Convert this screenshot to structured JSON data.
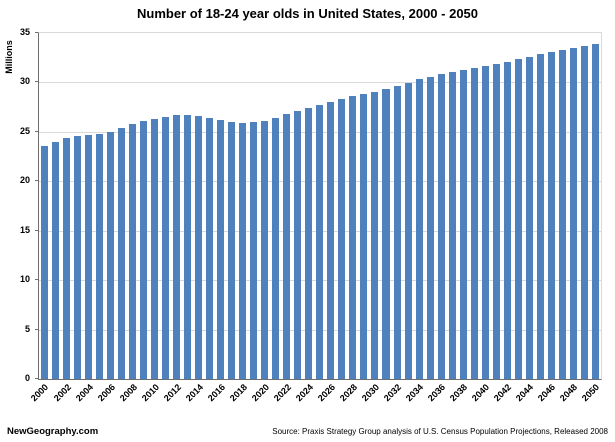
{
  "chart_data": {
    "type": "bar",
    "title": "Number of 18-24 year olds in United States, 2000 - 2050",
    "xlabel": "",
    "ylabel": "Millions",
    "ylim": [
      0,
      35
    ],
    "yticks": [
      0,
      5,
      10,
      15,
      20,
      25,
      30,
      35
    ],
    "x_tick_interval": 2,
    "grid": true,
    "legend": "none",
    "bar_color": "#4f81bd",
    "categories": [
      2000,
      2001,
      2002,
      2003,
      2004,
      2005,
      2006,
      2007,
      2008,
      2009,
      2010,
      2011,
      2012,
      2013,
      2014,
      2015,
      2016,
      2017,
      2018,
      2019,
      2020,
      2021,
      2022,
      2023,
      2024,
      2025,
      2026,
      2027,
      2028,
      2029,
      2030,
      2031,
      2032,
      2033,
      2034,
      2035,
      2036,
      2037,
      2038,
      2039,
      2040,
      2041,
      2042,
      2043,
      2044,
      2045,
      2046,
      2047,
      2048,
      2049,
      2050
    ],
    "values": [
      23.6,
      24.0,
      24.4,
      24.6,
      24.7,
      24.8,
      25.0,
      25.4,
      25.8,
      26.1,
      26.3,
      26.5,
      26.7,
      26.7,
      26.6,
      26.4,
      26.2,
      26.0,
      25.9,
      26.0,
      26.1,
      26.4,
      26.8,
      27.1,
      27.4,
      27.7,
      28.0,
      28.3,
      28.6,
      28.8,
      29.0,
      29.3,
      29.6,
      29.9,
      30.3,
      30.6,
      30.9,
      31.1,
      31.3,
      31.5,
      31.7,
      31.9,
      32.1,
      32.4,
      32.6,
      32.9,
      33.1,
      33.3,
      33.5,
      33.7,
      33.9
    ]
  },
  "footer": {
    "brand": "NewGeography.com",
    "source": "Source: Praxis Strategy Group analysis of U.S. Census Population Projections, Released 2008"
  }
}
